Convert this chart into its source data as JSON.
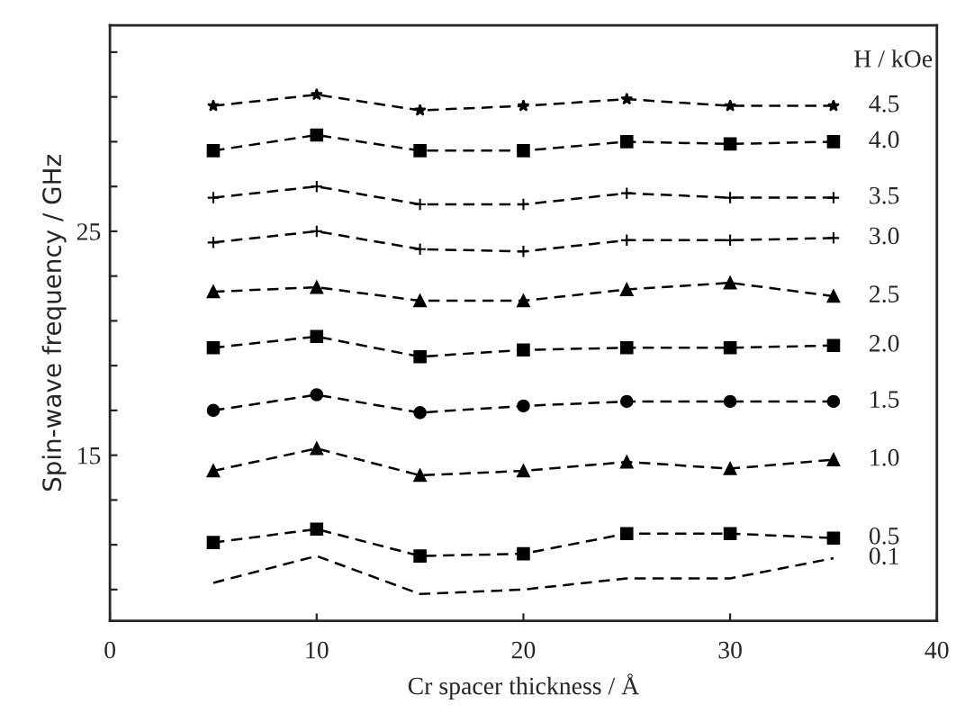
{
  "chart_data": {
    "type": "line",
    "xlabel": "Cr spacer thickness / Å",
    "ylabel": "Spin-wave frequency / GHz",
    "legend_title": "H / kOe",
    "x": [
      5,
      10,
      15,
      20,
      25,
      30,
      35
    ],
    "xlim": [
      0,
      40
    ],
    "xticks": [
      0,
      10,
      20,
      30,
      40
    ],
    "ylim": [
      7.6,
      34.2
    ],
    "yticks": [
      {
        "value": 9,
        "label": null
      },
      {
        "value": 11,
        "label": null
      },
      {
        "value": 13,
        "label": null
      },
      15,
      {
        "value": 17,
        "label": null
      },
      {
        "value": 19,
        "label": null
      },
      {
        "value": 21,
        "label": null
      },
      {
        "value": 23,
        "label": null
      },
      25,
      {
        "value": 27,
        "label": null
      },
      {
        "value": 29,
        "label": null
      },
      {
        "value": 31,
        "label": null
      },
      {
        "value": 33,
        "label": null
      }
    ],
    "grid": false,
    "line_style": "dashed",
    "series": [
      {
        "name": "4.5",
        "color": "#000000",
        "marker": "star",
        "values": [
          30.6,
          31.1,
          30.4,
          30.6,
          30.9,
          30.6,
          30.6
        ]
      },
      {
        "name": "4.0",
        "color": "#000000",
        "marker": "square",
        "values": [
          28.6,
          29.3,
          28.6,
          28.6,
          29.0,
          28.9,
          29.0
        ]
      },
      {
        "name": "3.5",
        "color": "#000000",
        "marker": "cross",
        "values": [
          26.5,
          27.0,
          26.2,
          26.2,
          26.7,
          26.5,
          26.5
        ]
      },
      {
        "name": "3.0",
        "color": "#000000",
        "marker": "cross",
        "values": [
          24.5,
          25.0,
          24.2,
          24.1,
          24.6,
          24.6,
          24.7
        ]
      },
      {
        "name": "2.5",
        "color": "#000000",
        "marker": "triangle",
        "values": [
          22.3,
          22.5,
          21.9,
          21.9,
          22.4,
          22.7,
          22.1
        ]
      },
      {
        "name": "2.0",
        "color": "#000000",
        "marker": "square",
        "values": [
          19.8,
          20.3,
          19.4,
          19.7,
          19.8,
          19.8,
          19.9
        ]
      },
      {
        "name": "1.5",
        "color": "#000000",
        "marker": "circle",
        "values": [
          17.0,
          17.7,
          16.9,
          17.2,
          17.4,
          17.4,
          17.4
        ]
      },
      {
        "name": "1.0",
        "color": "#000000",
        "marker": "triangle",
        "values": [
          14.3,
          15.3,
          14.1,
          14.3,
          14.7,
          14.4,
          14.8
        ]
      },
      {
        "name": "0.5",
        "color": "#000000",
        "marker": "square",
        "values": [
          11.1,
          11.7,
          10.5,
          10.6,
          11.5,
          11.5,
          11.3
        ]
      },
      {
        "name": "0.1",
        "color": "#000000",
        "marker": "none",
        "values": [
          9.3,
          10.5,
          8.8,
          9.0,
          9.5,
          9.5,
          10.4
        ]
      }
    ]
  }
}
